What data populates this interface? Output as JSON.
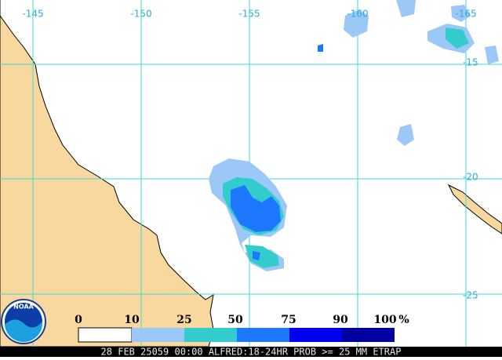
{
  "map": {
    "longitude_labels": [
      "-145",
      "-150",
      "-155",
      "-160",
      "-165"
    ],
    "latitude_labels": [
      "-15",
      "-20",
      "-25"
    ],
    "legend": {
      "labels": [
        "0",
        "10",
        "25",
        "50",
        "75",
        "90",
        "100"
      ],
      "unit": "%"
    },
    "logo": "NOAA",
    "caption": "28 FEB 25059 00:00 ALFRED:18-24HR PROB >= 25 MM ETRAP"
  }
}
